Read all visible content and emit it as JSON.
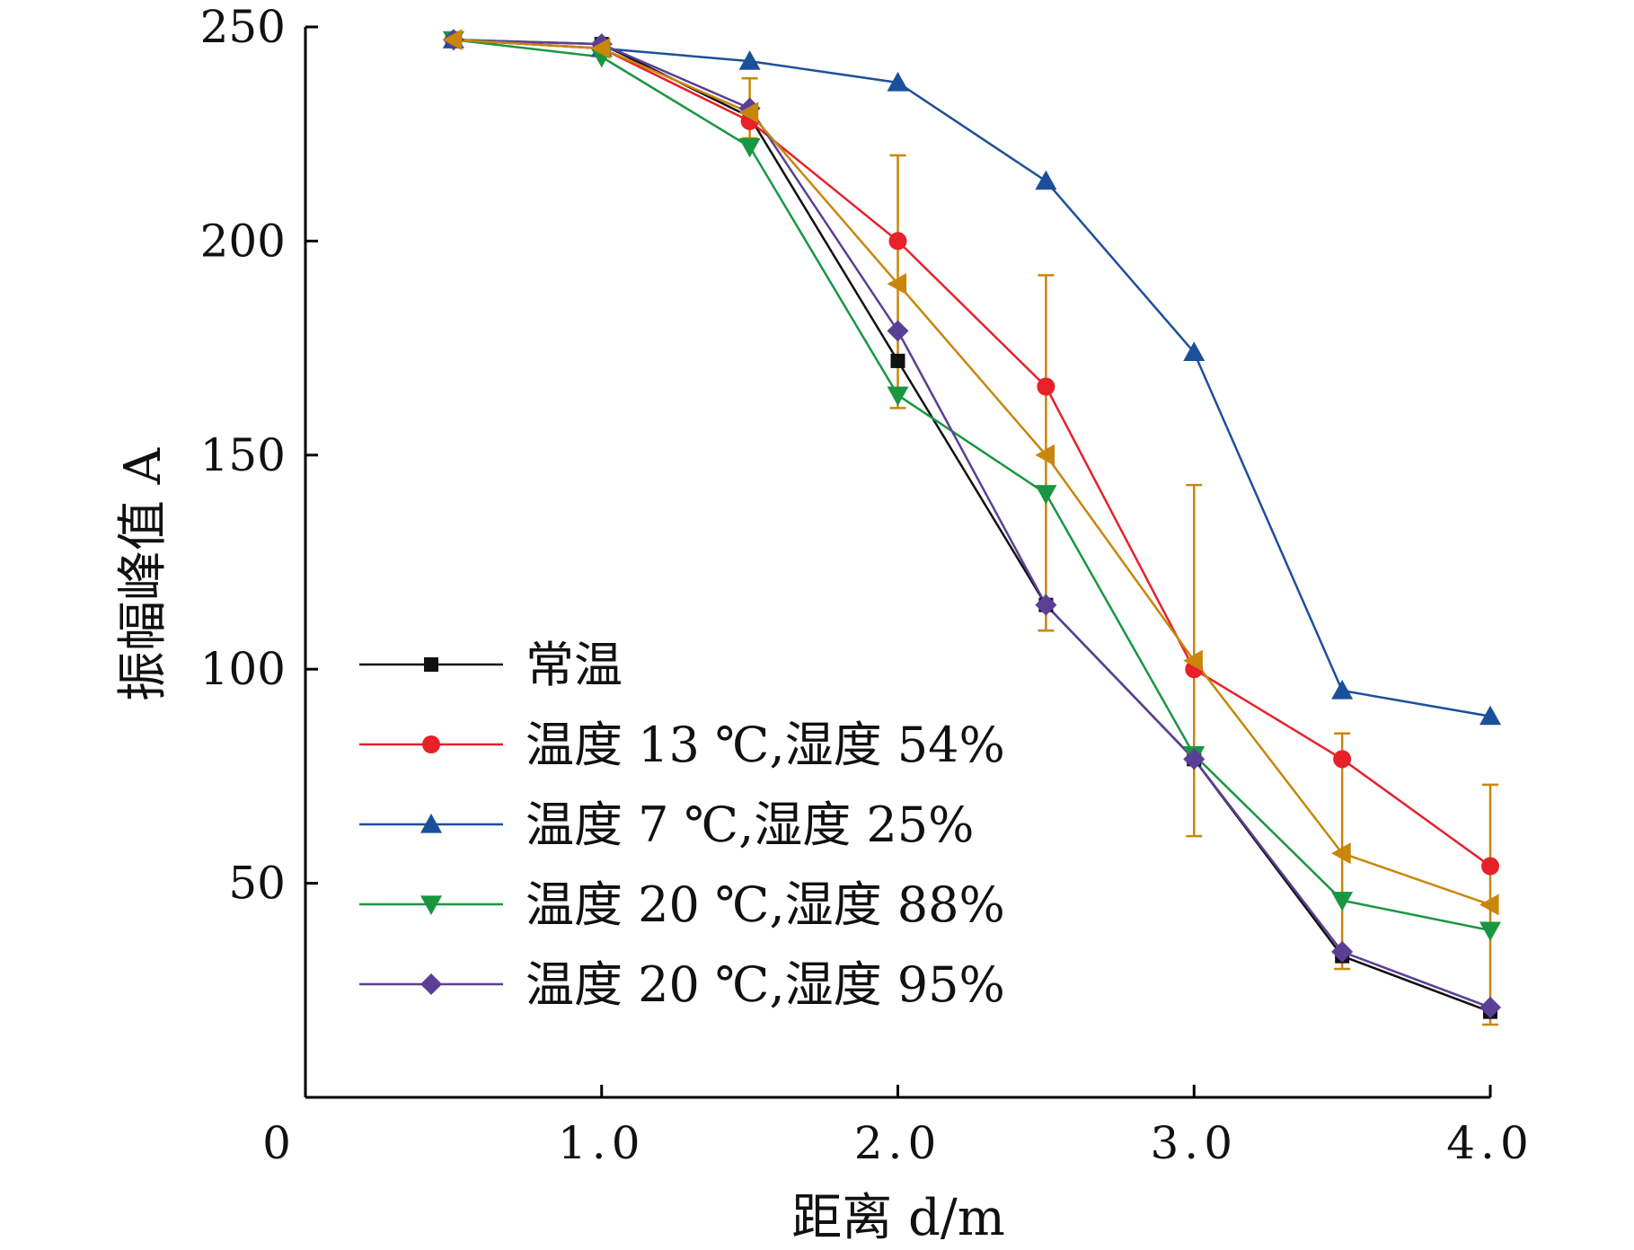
{
  "chart_data": {
    "type": "line",
    "title": "",
    "xlabel": "距离 d/m",
    "ylabel": "振幅峰值 A",
    "xlim": [
      0,
      4.0
    ],
    "ylim": [
      0,
      250
    ],
    "origin_label": "0",
    "x_ticks": [
      {
        "value": 1.0,
        "label": "1.0"
      },
      {
        "value": 2.0,
        "label": "2.0"
      },
      {
        "value": 3.0,
        "label": "3.0"
      },
      {
        "value": 4.0,
        "label": "4.0"
      }
    ],
    "y_ticks": [
      {
        "value": 50,
        "label": "50"
      },
      {
        "value": 100,
        "label": "100"
      },
      {
        "value": 150,
        "label": "150"
      },
      {
        "value": 200,
        "label": "200"
      },
      {
        "value": 250,
        "label": "250"
      }
    ],
    "grid": false,
    "legend_position": "bottom-left",
    "x": [
      0.5,
      1.0,
      1.5,
      2.0,
      2.5,
      3.0,
      3.5,
      4.0
    ],
    "series": [
      {
        "name": "常温",
        "color": "#111111",
        "marker": "square",
        "values": [
          247,
          246,
          229,
          172,
          115,
          79,
          33,
          20
        ]
      },
      {
        "name": "温度 13 ℃,湿度 54%",
        "color": "#e8202a",
        "marker": "circle",
        "values": [
          247,
          245,
          228,
          200,
          166,
          100,
          79,
          54
        ]
      },
      {
        "name": "温度 7 ℃,湿度 25%",
        "color": "#1b4f9c",
        "marker": "triangle-up",
        "values": [
          247,
          245,
          242,
          237,
          214,
          174,
          95,
          89
        ]
      },
      {
        "name": "温度 20 ℃,湿度 88%",
        "color": "#1a9641",
        "marker": "triangle-down",
        "values": [
          247,
          243,
          222,
          164,
          141,
          80,
          46,
          39
        ]
      },
      {
        "name": "温度 20 ℃,湿度 95%",
        "color": "#5b3f96",
        "marker": "diamond",
        "values": [
          247,
          246,
          231,
          179,
          115,
          79,
          34,
          21
        ]
      },
      {
        "name": "",
        "color": "#c8860b",
        "marker": "triangle-left",
        "in_legend": false,
        "values": [
          247,
          245,
          230,
          190,
          150,
          102,
          57,
          45
        ],
        "error_low": [
          null,
          null,
          224,
          161,
          109,
          61,
          30,
          17
        ],
        "error_high": [
          null,
          null,
          238,
          220,
          192,
          143,
          85,
          73
        ]
      }
    ]
  }
}
